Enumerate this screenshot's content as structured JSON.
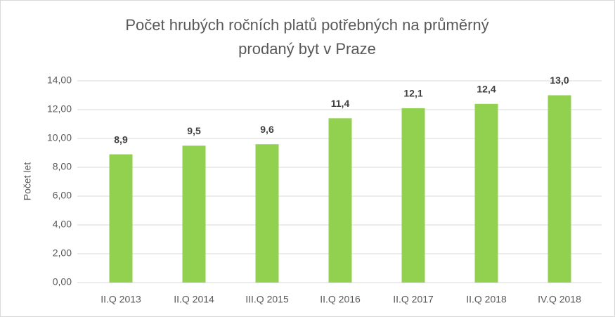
{
  "chart_data": {
    "type": "bar",
    "title": [
      "Počet hrubých ročních platů potřebných na průměrný",
      "prodaný byt v Praze"
    ],
    "y_label": "Počet let",
    "categories": [
      "II.Q 2013",
      "II.Q 2014",
      "III.Q 2015",
      "II.Q 2016",
      "II.Q 2017",
      "II.Q 2018",
      "IV.Q 2018"
    ],
    "values": [
      8.9,
      9.5,
      9.6,
      11.4,
      12.1,
      12.4,
      13.0
    ],
    "value_labels": [
      "8,9",
      "9,5",
      "9,6",
      "11,4",
      "12,1",
      "12,4",
      "13,0"
    ],
    "color": "#92d050",
    "ylim": [
      0,
      14
    ],
    "yticks": [
      {
        "value": 0,
        "label": "0,00"
      },
      {
        "value": 2,
        "label": "2,00"
      },
      {
        "value": 4,
        "label": "4,00"
      },
      {
        "value": 6,
        "label": "6,00"
      },
      {
        "value": 8,
        "label": "8,00"
      },
      {
        "value": 10,
        "label": "10,00"
      },
      {
        "value": 12,
        "label": "12,00"
      },
      {
        "value": 14,
        "label": "14,00"
      }
    ],
    "grid": true
  }
}
